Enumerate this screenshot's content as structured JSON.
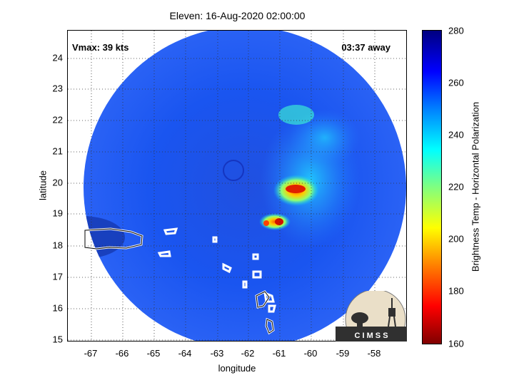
{
  "title": "Eleven: 16-Aug-2020 02:00:00",
  "annotations": {
    "vmax": "Vmax: 39 kts",
    "timer": "03:37 away"
  },
  "axes": {
    "xlabel": "longitude",
    "ylabel": "latitude",
    "xticks": [
      "-67",
      "-66",
      "-65",
      "-64",
      "-63",
      "-62",
      "-61",
      "-60",
      "-59",
      "-58"
    ],
    "yticks": [
      "24",
      "23",
      "22",
      "21",
      "20",
      "19",
      "18",
      "17",
      "16",
      "15"
    ]
  },
  "colorbar": {
    "label": "Brightness Temp - Horizontal Polarization",
    "ticks": [
      "280",
      "260",
      "240",
      "220",
      "200",
      "180",
      "160"
    ]
  },
  "logo": {
    "text": "C I M S S"
  }
}
